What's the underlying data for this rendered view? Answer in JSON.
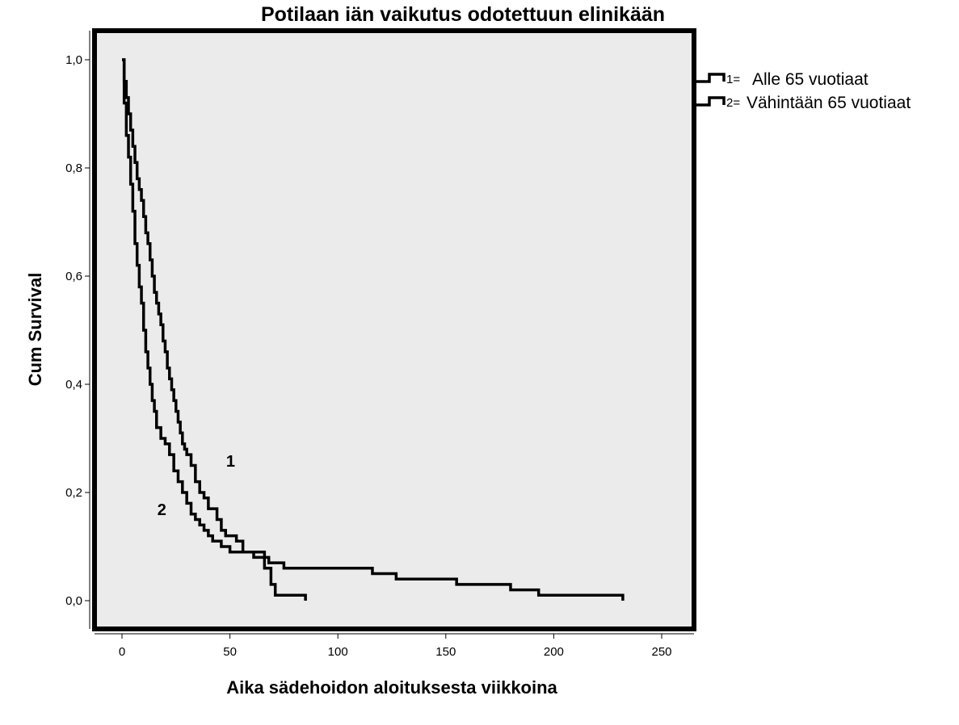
{
  "chart_data": {
    "type": "line",
    "title": "Potilaan iän vaikutus odotettuun elinikään",
    "xlabel": "Aika sädehoidon aloituksesta viikkoina",
    "ylabel": "Cum Survival",
    "xlim": [
      -12,
      268
    ],
    "ylim": [
      -0.06,
      1.06
    ],
    "x_ticks": [
      0,
      50,
      100,
      150,
      200,
      250
    ],
    "x_tick_labels": [
      "0",
      "50",
      "100",
      "150",
      "200",
      "250"
    ],
    "y_ticks": [
      0.0,
      0.2,
      0.4,
      0.6,
      0.8,
      1.0
    ],
    "y_tick_labels": [
      "0,0",
      "0,2",
      "0,4",
      "0,6",
      "0,8",
      "1,0"
    ],
    "grid": false,
    "legend_position": "right",
    "colors": {
      "background": "#ebebeb",
      "line": "#000000"
    },
    "series": [
      {
        "name": "1",
        "legend_number": "1=",
        "legend_text": "Alle 65 vuotiaat",
        "curve_label": "1",
        "x": [
          0,
          1,
          2,
          3,
          4,
          5,
          6,
          7,
          8,
          9,
          10,
          11,
          12,
          13,
          14,
          15,
          16,
          17,
          18,
          19,
          20,
          21,
          22,
          23,
          24,
          25,
          26,
          27,
          28,
          29,
          30,
          32,
          34,
          36,
          38,
          40,
          42,
          44,
          46,
          48,
          50,
          53,
          56,
          58,
          61,
          63,
          68,
          75,
          78,
          81,
          87,
          116,
          127,
          155,
          180,
          193,
          232
        ],
        "y": [
          1.0,
          0.96,
          0.93,
          0.9,
          0.87,
          0.84,
          0.81,
          0.78,
          0.76,
          0.74,
          0.71,
          0.68,
          0.66,
          0.63,
          0.6,
          0.57,
          0.55,
          0.53,
          0.51,
          0.48,
          0.46,
          0.43,
          0.41,
          0.39,
          0.37,
          0.35,
          0.33,
          0.31,
          0.29,
          0.28,
          0.27,
          0.25,
          0.22,
          0.2,
          0.19,
          0.17,
          0.17,
          0.15,
          0.13,
          0.12,
          0.12,
          0.11,
          0.09,
          0.09,
          0.08,
          0.08,
          0.07,
          0.06,
          0.06,
          0.06,
          0.06,
          0.05,
          0.04,
          0.03,
          0.02,
          0.01,
          0.0
        ]
      },
      {
        "name": "2",
        "legend_number": "2=",
        "legend_text": "Vähintään 65 vuotiaat",
        "curve_label": "2",
        "x": [
          0,
          1,
          2,
          3,
          4,
          5,
          6,
          7,
          8,
          9,
          10,
          11,
          12,
          13,
          14,
          15,
          16,
          18,
          20,
          22,
          24,
          26,
          28,
          30,
          32,
          34,
          36,
          38,
          40,
          42,
          44,
          46,
          48,
          50,
          52,
          54,
          66,
          69,
          71,
          85
        ],
        "y": [
          1.0,
          0.92,
          0.86,
          0.82,
          0.77,
          0.72,
          0.66,
          0.62,
          0.58,
          0.55,
          0.5,
          0.46,
          0.43,
          0.4,
          0.37,
          0.35,
          0.32,
          0.3,
          0.29,
          0.27,
          0.24,
          0.22,
          0.2,
          0.18,
          0.16,
          0.15,
          0.14,
          0.13,
          0.12,
          0.11,
          0.11,
          0.1,
          0.1,
          0.09,
          0.09,
          0.09,
          0.06,
          0.03,
          0.01,
          0.0
        ]
      }
    ]
  }
}
